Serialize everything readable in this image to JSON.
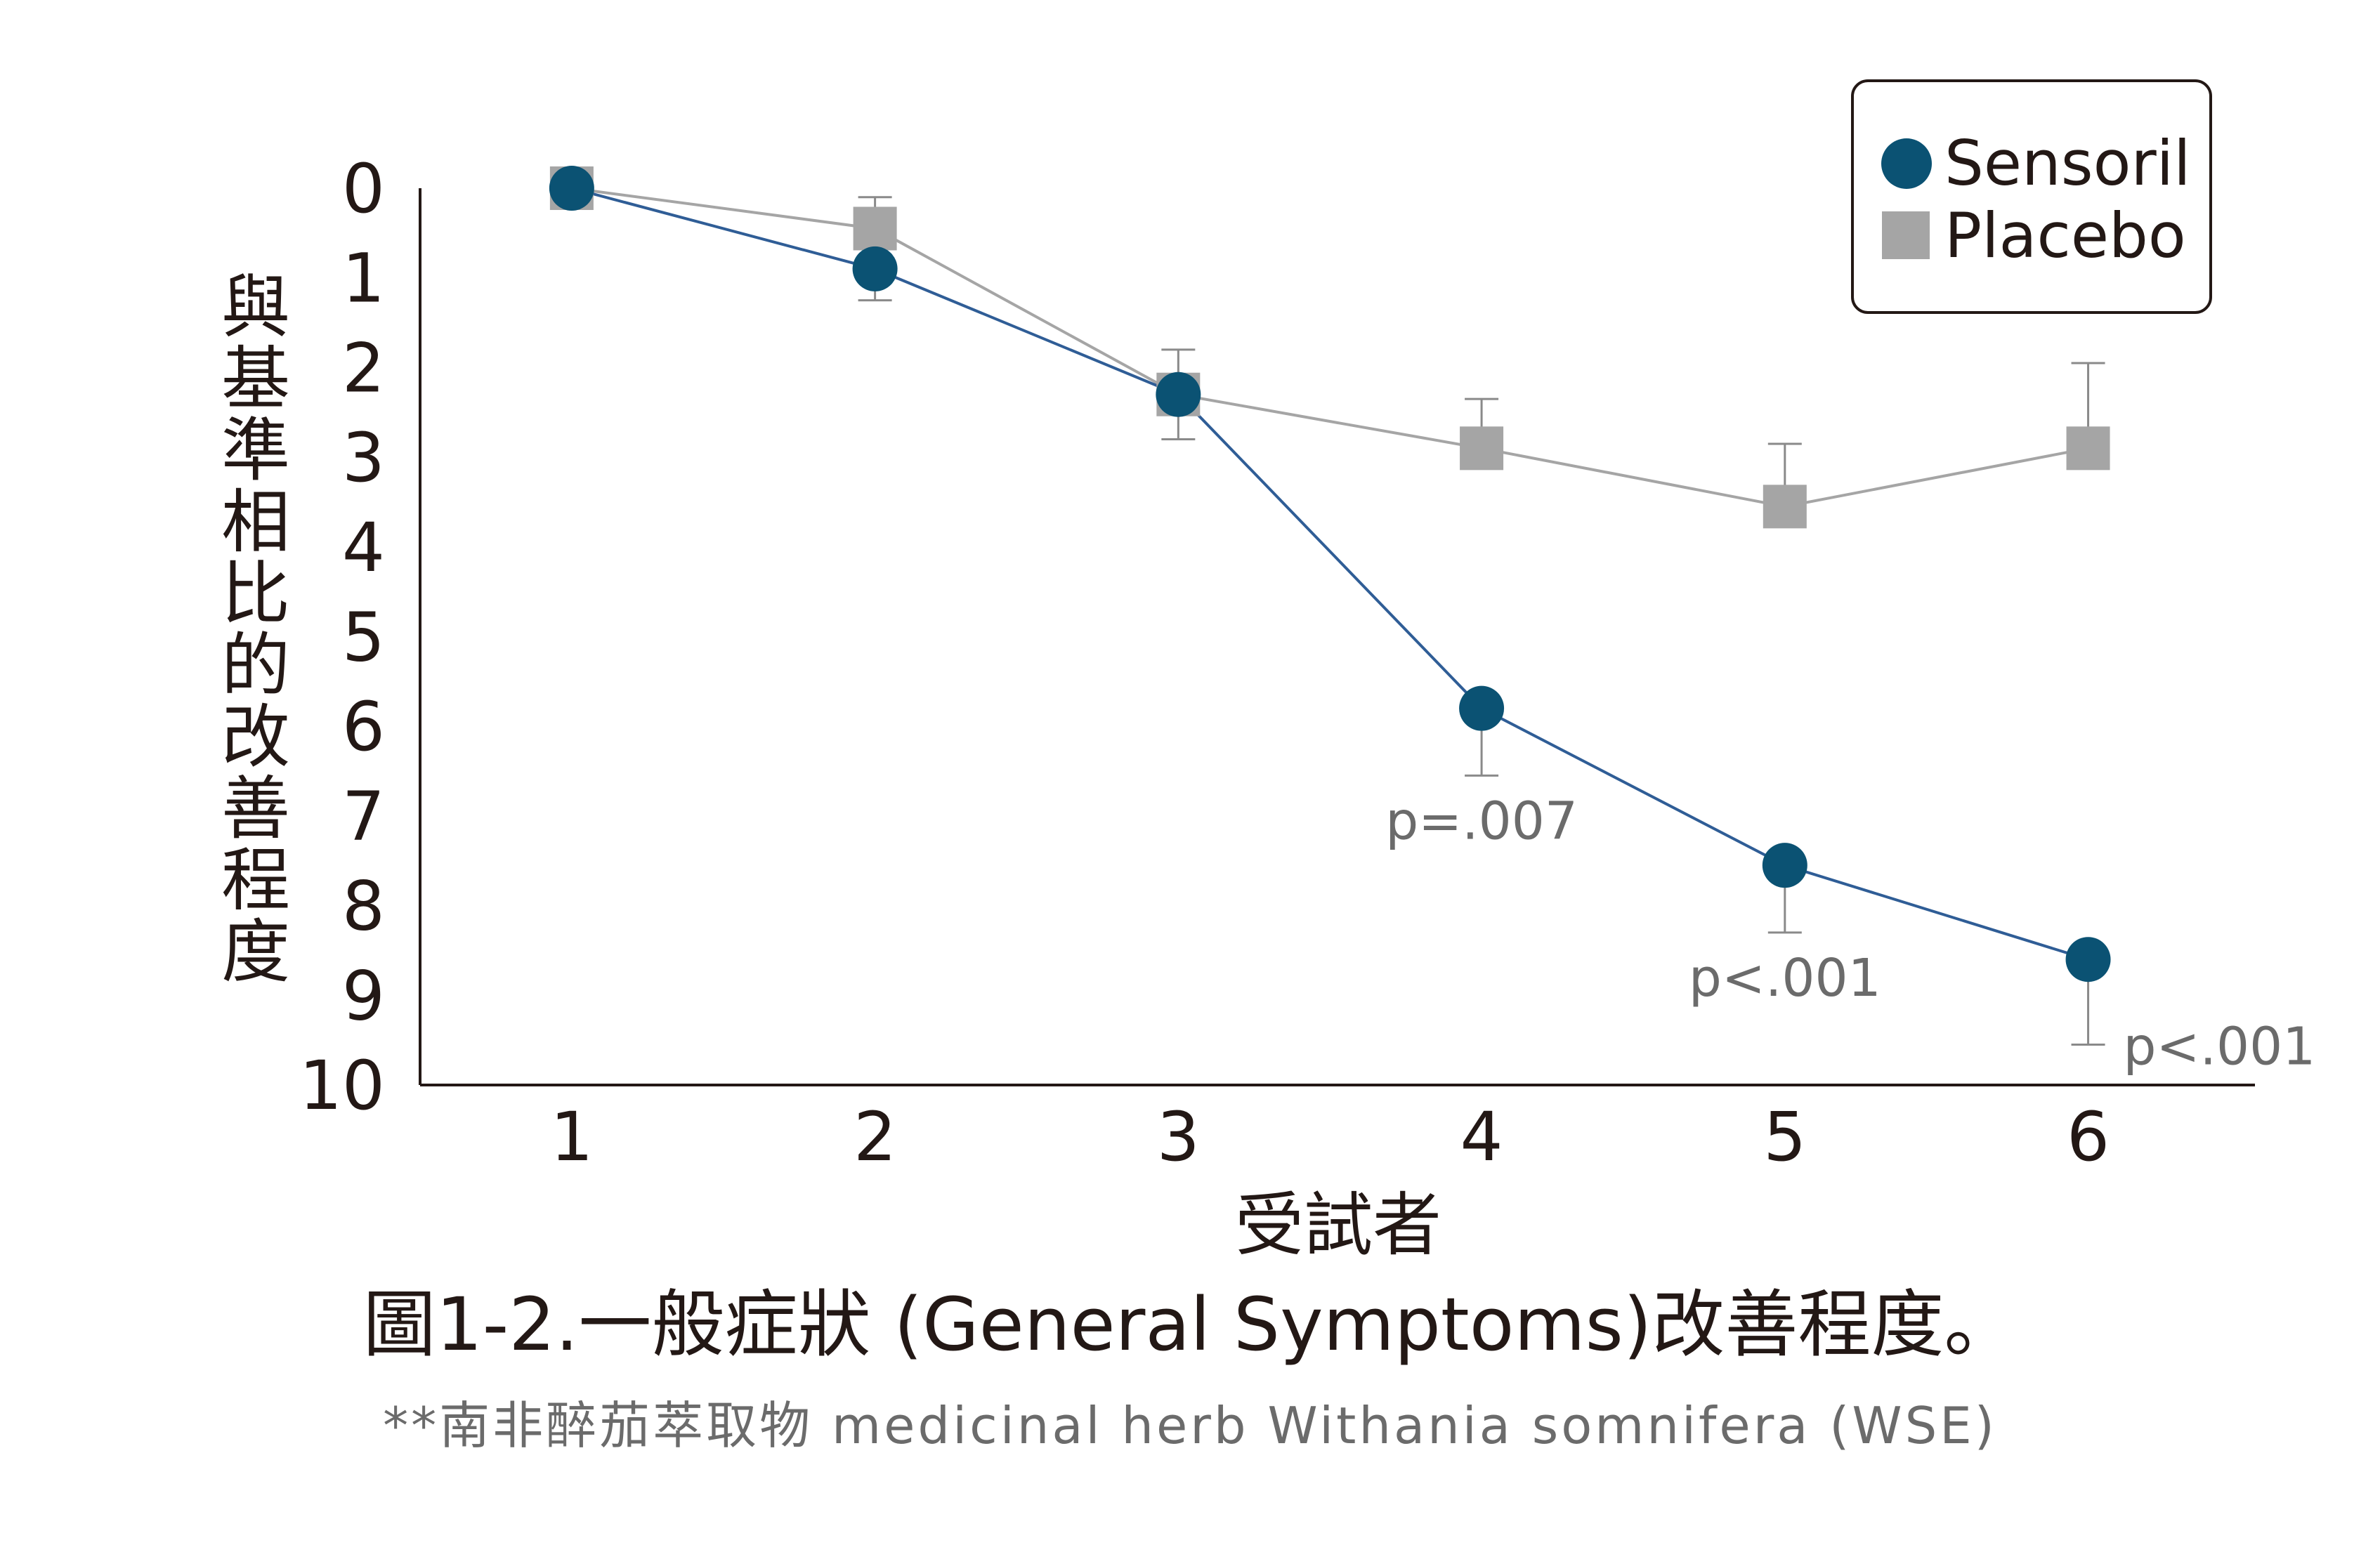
{
  "chart_data": {
    "type": "line",
    "title": "圖1-2.一般症狀 (General Symptoms)改善程度。",
    "subtitle": "**南非醉茄萃取物 medicinal herb Withania somnifera (WSE)",
    "xlabel": "受試者",
    "ylabel": "與基準相比的改善程度",
    "x": [
      1,
      2,
      3,
      4,
      5,
      6
    ],
    "xlim": [
      0.5,
      6.55
    ],
    "ylim": [
      0,
      10
    ],
    "y_inverted": true,
    "y_ticks": [
      "0",
      "1",
      "2",
      "3",
      "4",
      "5",
      "6",
      "7",
      "8",
      "9",
      "10"
    ],
    "x_ticks": [
      "1",
      "2",
      "3",
      "4",
      "5",
      "6"
    ],
    "grid": false,
    "legend_position": "top-right",
    "series": [
      {
        "name": "Sensoril",
        "marker": "circle",
        "color": "#0b5273",
        "line_color": "#2f5d96",
        "values": [
          0,
          0.9,
          2.3,
          5.8,
          7.55,
          8.6
        ],
        "error_low": [
          0,
          0.35,
          0,
          0.75,
          0.75,
          0.95
        ],
        "error_high": [
          0,
          0,
          0,
          0,
          0,
          0
        ]
      },
      {
        "name": "Placebo",
        "marker": "square",
        "color": "#a5a5a5",
        "line_color": "#a5a5a5",
        "values": [
          0,
          0.45,
          2.3,
          2.9,
          3.55,
          2.9
        ],
        "error_low": [
          0,
          0,
          0.5,
          0,
          0,
          0
        ],
        "error_high": [
          0,
          0.35,
          0.5,
          0.55,
          0.7,
          0.95
        ]
      }
    ],
    "annotations": [
      {
        "text": "p=.007",
        "x": 4
      },
      {
        "text": "p<.001",
        "x": 5
      },
      {
        "text": "p<.001",
        "x": 6
      }
    ]
  }
}
